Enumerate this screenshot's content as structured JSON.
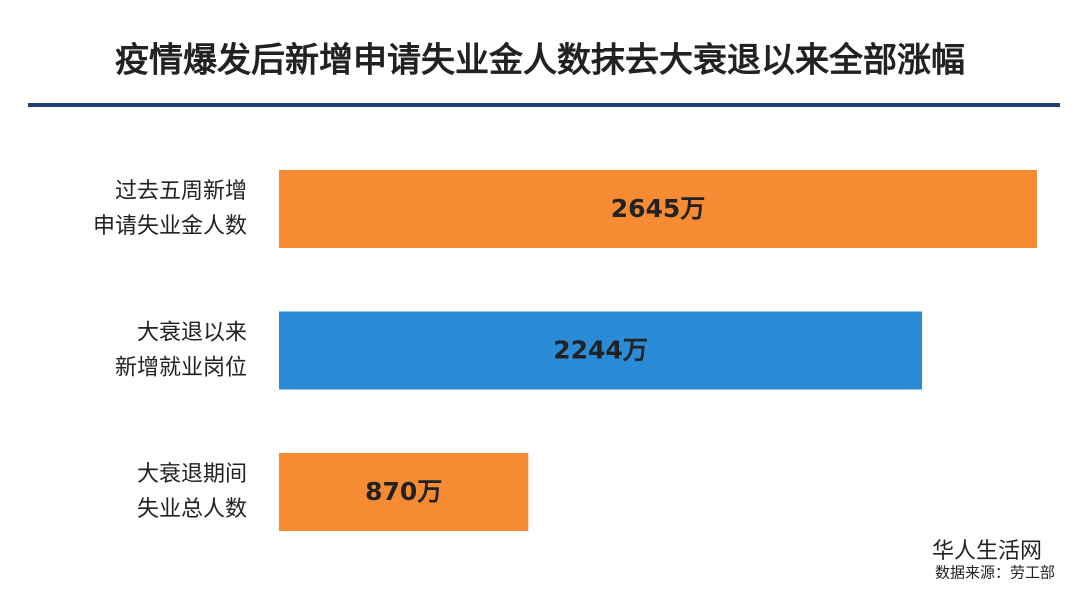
{
  "chart_data": {
    "type": "hbar",
    "title": "疫情爆发后新增申请失业金人数抹去大衰退以来全部涨幅",
    "categories": [
      [
        "过去五周新增",
        "申请失业金人数"
      ],
      [
        "大衰退以来",
        "新增就业岗位"
      ],
      [
        "大衰退期间",
        "失业总人数"
      ]
    ],
    "values": [
      2645,
      2244,
      870
    ],
    "value_labels": [
      "2645万",
      "2244万",
      "870万"
    ],
    "colors": [
      "#f68b33",
      "#2a8bd6",
      "#f68b33"
    ],
    "source": "数据来源：劳工部",
    "watermark": "华人生活网"
  }
}
